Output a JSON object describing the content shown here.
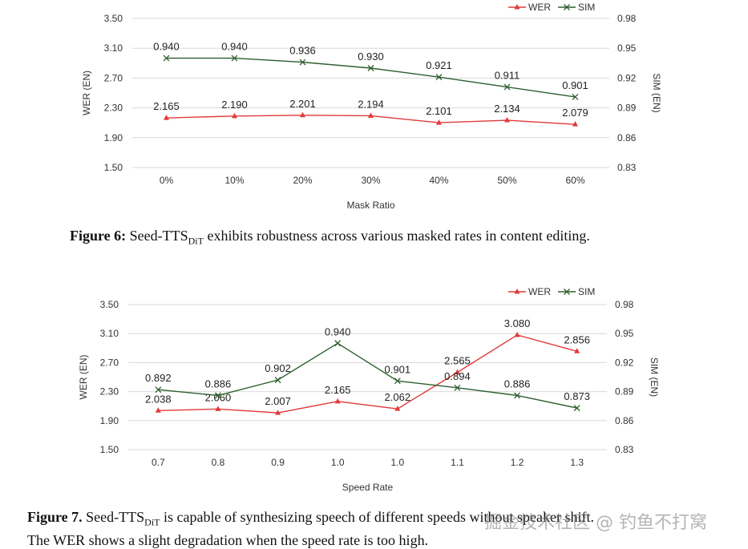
{
  "chart_data": [
    {
      "type": "line",
      "xlabel": "Mask Ratio",
      "ylabel": "WER (EN)",
      "y2label": "SIM (EN)",
      "categories": [
        "0%",
        "10%",
        "20%",
        "30%",
        "40%",
        "50%",
        "60%"
      ],
      "ylim": [
        1.5,
        3.5
      ],
      "yticks": [
        "1.50",
        "1.90",
        "2.30",
        "2.70",
        "3.10",
        "3.50"
      ],
      "y2lim": [
        0.83,
        0.98
      ],
      "y2ticks": [
        "0.83",
        "0.86",
        "0.89",
        "0.92",
        "0.95",
        "0.98"
      ],
      "legend": "top-right",
      "series": [
        {
          "name": "WER",
          "axis": "left",
          "color": "#e03a3a",
          "marker": "triangle",
          "values": [
            2.165,
            2.19,
            2.201,
            2.194,
            2.101,
            2.134,
            2.079
          ],
          "labels": [
            "2.165",
            "2.190",
            "2.201",
            "2.194",
            "2.101",
            "2.134",
            "2.079"
          ]
        },
        {
          "name": "SIM",
          "axis": "right",
          "color": "#2e5e2e",
          "marker": "x",
          "values": [
            0.94,
            0.94,
            0.936,
            0.93,
            0.921,
            0.911,
            0.901
          ],
          "labels": [
            "0.940",
            "0.940",
            "0.936",
            "0.930",
            "0.921",
            "0.911",
            "0.901"
          ]
        }
      ]
    },
    {
      "type": "line",
      "xlabel": "Speed Rate",
      "ylabel": "WER (EN)",
      "y2label": "SIM (EN)",
      "categories": [
        "0.7",
        "0.8",
        "0.9",
        "1.0",
        "1.0",
        "1.1",
        "1.2",
        "1.3"
      ],
      "ylim": [
        1.5,
        3.5
      ],
      "yticks": [
        "1.50",
        "1.90",
        "2.30",
        "2.70",
        "3.10",
        "3.50"
      ],
      "y2lim": [
        0.83,
        0.98
      ],
      "y2ticks": [
        "0.83",
        "0.86",
        "0.89",
        "0.92",
        "0.95",
        "0.98"
      ],
      "legend": "top-right",
      "series": [
        {
          "name": "WER",
          "axis": "left",
          "color": "#e03a3a",
          "marker": "triangle",
          "values": [
            2.038,
            2.06,
            2.007,
            2.165,
            2.062,
            2.565,
            3.08,
            2.856
          ],
          "labels": [
            "2.038",
            "2.060",
            "2.007",
            "2.165",
            "2.062",
            "2.565",
            "3.080",
            "2.856"
          ]
        },
        {
          "name": "SIM",
          "axis": "right",
          "color": "#2e5e2e",
          "marker": "x",
          "values": [
            0.892,
            0.886,
            0.902,
            0.94,
            0.901,
            0.894,
            0.886,
            0.873
          ],
          "labels": [
            "0.892",
            "0.886",
            "0.902",
            "0.940",
            "0.901",
            "0.894",
            "0.886",
            "0.873"
          ]
        }
      ]
    }
  ],
  "captions": {
    "fig6": {
      "label": "Figure 6:",
      "pre": "Seed-TTS",
      "sub": "DiT",
      "post": " exhibits robustness across various masked rates in content editing."
    },
    "fig7": {
      "label": "Figure 7.",
      "pre": "Seed-TTS",
      "sub": "DiT",
      "post": " is capable of synthesizing speech of different speeds without speaker shift.",
      "line2": "The WER shows a slight degradation when the speed rate is too high."
    }
  },
  "watermark": "掘金技术社区 @ 钓鱼不打窝"
}
